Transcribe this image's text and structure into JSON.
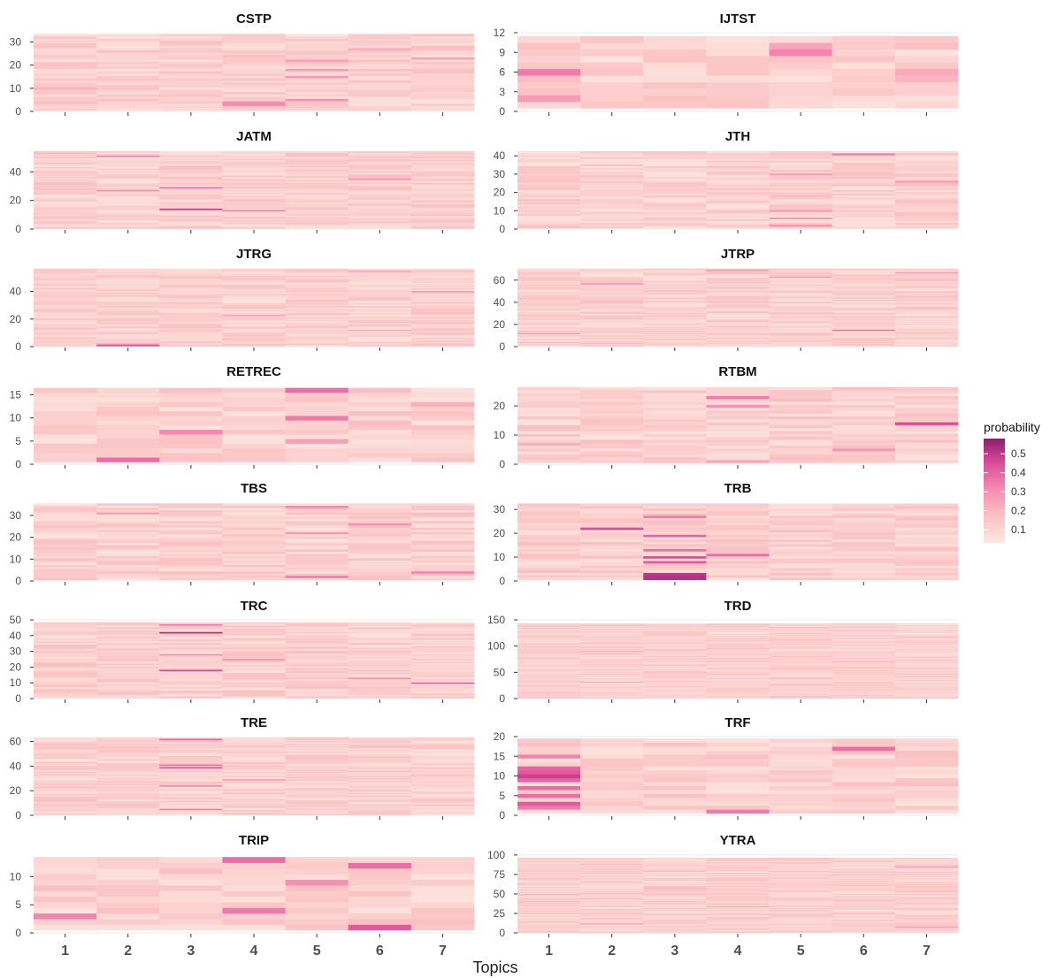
{
  "chart_data": {
    "type": "heatmap",
    "xlabel": "Topics",
    "x_categories": [
      "1",
      "2",
      "3",
      "4",
      "5",
      "6",
      "7"
    ],
    "legend": {
      "title": "probability",
      "ticks": [
        "0.1",
        "0.2",
        "0.3",
        "0.4",
        "0.5"
      ],
      "range": [
        0.03,
        0.58
      ],
      "colors": [
        "#fde8e2",
        "#fbc3c4",
        "#f68fb3",
        "#e0509b",
        "#8a1d6c"
      ],
      "placement": "right"
    },
    "panels": [
      {
        "title": "CSTP",
        "n_rows": 33,
        "yticks": [
          "0",
          "10",
          "20",
          "30"
        ],
        "ytick_values": [
          0,
          10,
          20,
          30
        ],
        "ylim": [
          0,
          34
        ],
        "highlights": [
          {
            "topic": 5,
            "row": 5,
            "value": 0.3
          },
          {
            "topic": 5,
            "row": 15,
            "value": 0.28
          },
          {
            "topic": 5,
            "row": 18,
            "value": 0.27
          },
          {
            "topic": 5,
            "row": 22,
            "value": 0.26
          },
          {
            "topic": 4,
            "row": 3,
            "value": 0.32
          },
          {
            "topic": 4,
            "row": 4,
            "value": 0.3
          },
          {
            "topic": 1,
            "row": 10,
            "value": 0.22
          },
          {
            "topic": 7,
            "row": 23,
            "value": 0.25
          },
          {
            "topic": 6,
            "row": 27,
            "value": 0.22
          }
        ]
      },
      {
        "title": "IJTST",
        "n_rows": 11,
        "yticks": [
          "0",
          "3",
          "6",
          "9",
          "12"
        ],
        "ytick_values": [
          0,
          3,
          6,
          9,
          12
        ],
        "ylim": [
          0,
          12
        ],
        "highlights": [
          {
            "topic": 1,
            "row": 6,
            "value": 0.35
          },
          {
            "topic": 1,
            "row": 2,
            "value": 0.27
          },
          {
            "topic": 5,
            "row": 9,
            "value": 0.33
          },
          {
            "topic": 5,
            "row": 10,
            "value": 0.25
          },
          {
            "topic": 7,
            "row": 6,
            "value": 0.23
          },
          {
            "topic": 7,
            "row": 5,
            "value": 0.2
          }
        ]
      },
      {
        "title": "JATM",
        "n_rows": 54,
        "yticks": [
          "0",
          "20",
          "40"
        ],
        "ytick_values": [
          0,
          20,
          40
        ],
        "ylim": [
          0,
          55
        ],
        "highlights": [
          {
            "topic": 3,
            "row": 14,
            "value": 0.5
          },
          {
            "topic": 3,
            "row": 29,
            "value": 0.36
          },
          {
            "topic": 2,
            "row": 27,
            "value": 0.3
          },
          {
            "topic": 2,
            "row": 51,
            "value": 0.33
          },
          {
            "topic": 4,
            "row": 13,
            "value": 0.33
          },
          {
            "topic": 6,
            "row": 35,
            "value": 0.3
          }
        ]
      },
      {
        "title": "JTH",
        "n_rows": 42,
        "yticks": [
          "0",
          "10",
          "20",
          "30",
          "40"
        ],
        "ytick_values": [
          0,
          10,
          20,
          30,
          40
        ],
        "ylim": [
          0,
          43
        ],
        "highlights": [
          {
            "topic": 5,
            "row": 2,
            "value": 0.3
          },
          {
            "topic": 5,
            "row": 6,
            "value": 0.28
          },
          {
            "topic": 5,
            "row": 10,
            "value": 0.28
          },
          {
            "topic": 5,
            "row": 30,
            "value": 0.27
          },
          {
            "topic": 6,
            "row": 41,
            "value": 0.36
          },
          {
            "topic": 7,
            "row": 26,
            "value": 0.28
          }
        ]
      },
      {
        "title": "JTRG",
        "n_rows": 56,
        "yticks": [
          "0",
          "20",
          "40"
        ],
        "ytick_values": [
          0,
          20,
          40
        ],
        "ylim": [
          0,
          57
        ],
        "highlights": [
          {
            "topic": 2,
            "row": 1,
            "value": 0.45
          },
          {
            "topic": 2,
            "row": 2,
            "value": 0.3
          },
          {
            "topic": 7,
            "row": 40,
            "value": 0.28
          },
          {
            "topic": 6,
            "row": 55,
            "value": 0.25
          },
          {
            "topic": 4,
            "row": 23,
            "value": 0.25
          },
          {
            "topic": 6,
            "row": 12,
            "value": 0.25
          }
        ]
      },
      {
        "title": "JTRP",
        "n_rows": 70,
        "yticks": [
          "0",
          "20",
          "40",
          "60"
        ],
        "ytick_values": [
          0,
          20,
          40,
          60
        ],
        "ylim": [
          0,
          71
        ],
        "highlights": [
          {
            "topic": 6,
            "row": 15,
            "value": 0.38
          },
          {
            "topic": 2,
            "row": 57,
            "value": 0.32
          },
          {
            "topic": 1,
            "row": 12,
            "value": 0.3
          },
          {
            "topic": 4,
            "row": 69,
            "value": 0.3
          },
          {
            "topic": 5,
            "row": 63,
            "value": 0.28
          },
          {
            "topic": 7,
            "row": 67,
            "value": 0.27
          }
        ]
      },
      {
        "title": "RETREC",
        "n_rows": 16,
        "yticks": [
          "0",
          "5",
          "10",
          "15"
        ],
        "ytick_values": [
          0,
          5,
          10,
          15
        ],
        "ylim": [
          0,
          17
        ],
        "highlights": [
          {
            "topic": 2,
            "row": 1,
            "value": 0.38
          },
          {
            "topic": 5,
            "row": 16,
            "value": 0.38
          },
          {
            "topic": 5,
            "row": 10,
            "value": 0.35
          },
          {
            "topic": 3,
            "row": 7,
            "value": 0.32
          },
          {
            "topic": 5,
            "row": 5,
            "value": 0.26
          },
          {
            "topic": 7,
            "row": 13,
            "value": 0.22
          }
        ]
      },
      {
        "title": "RTBM",
        "n_rows": 26,
        "yticks": [
          "0",
          "10",
          "20"
        ],
        "ytick_values": [
          0,
          10,
          20
        ],
        "ylim": [
          0,
          27
        ],
        "highlights": [
          {
            "topic": 7,
            "row": 14,
            "value": 0.45
          },
          {
            "topic": 4,
            "row": 23,
            "value": 0.35
          },
          {
            "topic": 4,
            "row": 20,
            "value": 0.3
          },
          {
            "topic": 6,
            "row": 5,
            "value": 0.28
          },
          {
            "topic": 4,
            "row": 1,
            "value": 0.25
          },
          {
            "topic": 1,
            "row": 7,
            "value": 0.22
          }
        ]
      },
      {
        "title": "TBS",
        "n_rows": 35,
        "yticks": [
          "0",
          "10",
          "20",
          "30"
        ],
        "ytick_values": [
          0,
          10,
          20,
          30
        ],
        "ylim": [
          0,
          36
        ],
        "highlights": [
          {
            "topic": 5,
            "row": 2,
            "value": 0.35
          },
          {
            "topic": 5,
            "row": 34,
            "value": 0.32
          },
          {
            "topic": 5,
            "row": 22,
            "value": 0.28
          },
          {
            "topic": 7,
            "row": 4,
            "value": 0.33
          },
          {
            "topic": 6,
            "row": 26,
            "value": 0.3
          },
          {
            "topic": 2,
            "row": 31,
            "value": 0.26
          }
        ]
      },
      {
        "title": "TRB",
        "n_rows": 32,
        "yticks": [
          "0",
          "10",
          "20",
          "30"
        ],
        "ytick_values": [
          0,
          10,
          20,
          30
        ],
        "ylim": [
          0,
          33
        ],
        "highlights": [
          {
            "topic": 3,
            "row": 1,
            "value": 0.52
          },
          {
            "topic": 3,
            "row": 2,
            "value": 0.52
          },
          {
            "topic": 3,
            "row": 3,
            "value": 0.5
          },
          {
            "topic": 3,
            "row": 8,
            "value": 0.42
          },
          {
            "topic": 3,
            "row": 10,
            "value": 0.45
          },
          {
            "topic": 3,
            "row": 13,
            "value": 0.38
          },
          {
            "topic": 3,
            "row": 19,
            "value": 0.4
          },
          {
            "topic": 3,
            "row": 27,
            "value": 0.35
          },
          {
            "topic": 2,
            "row": 22,
            "value": 0.45
          },
          {
            "topic": 4,
            "row": 11,
            "value": 0.38
          }
        ]
      },
      {
        "title": "TRC",
        "n_rows": 48,
        "yticks": [
          "0",
          "10",
          "20",
          "30",
          "40",
          "50"
        ],
        "ytick_values": [
          0,
          10,
          20,
          30,
          40,
          50
        ],
        "ylim": [
          0,
          50
        ],
        "highlights": [
          {
            "topic": 3,
            "row": 42,
            "value": 0.52
          },
          {
            "topic": 3,
            "row": 18,
            "value": 0.45
          },
          {
            "topic": 3,
            "row": 47,
            "value": 0.35
          },
          {
            "topic": 3,
            "row": 28,
            "value": 0.3
          },
          {
            "topic": 7,
            "row": 10,
            "value": 0.4
          },
          {
            "topic": 6,
            "row": 13,
            "value": 0.3
          },
          {
            "topic": 4,
            "row": 25,
            "value": 0.28
          }
        ]
      },
      {
        "title": "TRD",
        "n_rows": 143,
        "yticks": [
          "0",
          "50",
          "100",
          "150"
        ],
        "ytick_values": [
          0,
          50,
          100,
          150
        ],
        "ylim": [
          0,
          150
        ],
        "highlights": [
          {
            "topic": 2,
            "row": 32,
            "value": 0.3
          },
          {
            "topic": 2,
            "row": 90,
            "value": 0.25
          },
          {
            "topic": 6,
            "row": 70,
            "value": 0.22
          },
          {
            "topic": 2,
            "row": 140,
            "value": 0.25
          }
        ]
      },
      {
        "title": "TRE",
        "n_rows": 63,
        "yticks": [
          "0",
          "20",
          "40",
          "60"
        ],
        "ytick_values": [
          0,
          20,
          40,
          60
        ],
        "ylim": [
          0,
          64
        ],
        "highlights": [
          {
            "topic": 3,
            "row": 62,
            "value": 0.42
          },
          {
            "topic": 3,
            "row": 39,
            "value": 0.45
          },
          {
            "topic": 3,
            "row": 41,
            "value": 0.38
          },
          {
            "topic": 3,
            "row": 24,
            "value": 0.35
          },
          {
            "topic": 3,
            "row": 5,
            "value": 0.35
          },
          {
            "topic": 4,
            "row": 29,
            "value": 0.3
          }
        ]
      },
      {
        "title": "TRF",
        "n_rows": 19,
        "yticks": [
          "0",
          "5",
          "10",
          "15",
          "20"
        ],
        "ytick_values": [
          0,
          5,
          10,
          15,
          20
        ],
        "ylim": [
          0,
          20
        ],
        "highlights": [
          {
            "topic": 1,
            "row": 10,
            "value": 0.48
          },
          {
            "topic": 1,
            "row": 11,
            "value": 0.42
          },
          {
            "topic": 1,
            "row": 9,
            "value": 0.4
          },
          {
            "topic": 1,
            "row": 12,
            "value": 0.4
          },
          {
            "topic": 1,
            "row": 3,
            "value": 0.42
          },
          {
            "topic": 1,
            "row": 5,
            "value": 0.38
          },
          {
            "topic": 1,
            "row": 7,
            "value": 0.38
          },
          {
            "topic": 1,
            "row": 2,
            "value": 0.35
          },
          {
            "topic": 1,
            "row": 15,
            "value": 0.33
          },
          {
            "topic": 6,
            "row": 17,
            "value": 0.38
          },
          {
            "topic": 4,
            "row": 1,
            "value": 0.35
          }
        ]
      },
      {
        "title": "TRIP",
        "n_rows": 13,
        "yticks": [
          "0",
          "5",
          "10"
        ],
        "ytick_values": [
          0,
          5,
          10
        ],
        "ylim": [
          0,
          14
        ],
        "highlights": [
          {
            "topic": 6,
            "row": 1,
            "value": 0.42
          },
          {
            "topic": 6,
            "row": 12,
            "value": 0.38
          },
          {
            "topic": 4,
            "row": 13,
            "value": 0.38
          },
          {
            "topic": 4,
            "row": 4,
            "value": 0.35
          },
          {
            "topic": 1,
            "row": 3,
            "value": 0.33
          },
          {
            "topic": 5,
            "row": 9,
            "value": 0.3
          }
        ]
      },
      {
        "title": "YTRA",
        "n_rows": 96,
        "yticks": [
          "0",
          "25",
          "50",
          "75",
          "100"
        ],
        "ytick_values": [
          0,
          25,
          50,
          75,
          100
        ],
        "ylim": [
          0,
          101
        ],
        "highlights": [
          {
            "topic": 7,
            "row": 85,
            "value": 0.3
          },
          {
            "topic": 2,
            "row": 12,
            "value": 0.3
          },
          {
            "topic": 7,
            "row": 8,
            "value": 0.3
          },
          {
            "topic": 4,
            "row": 34,
            "value": 0.25
          },
          {
            "topic": 3,
            "row": 58,
            "value": 0.25
          }
        ]
      }
    ]
  }
}
